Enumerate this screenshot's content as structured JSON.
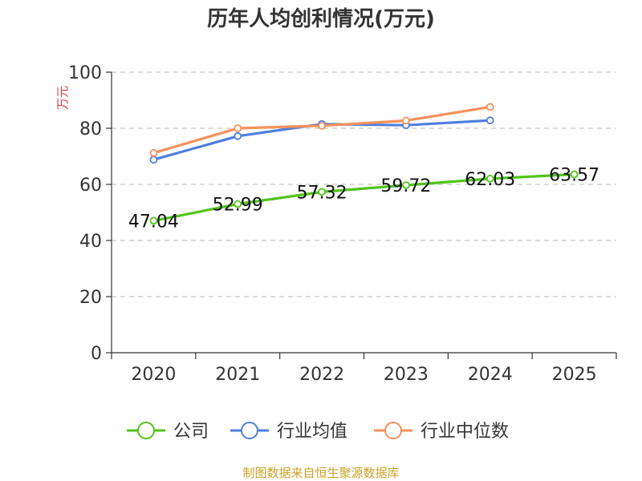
{
  "chart_data": {
    "type": "line",
    "title": "历年人均创利情况(万元)",
    "ylabel": "万元",
    "xlabel": "",
    "categories": [
      "2020",
      "2021",
      "2022",
      "2023",
      "2024",
      "2025"
    ],
    "ylim": [
      0,
      100
    ],
    "yticks": [
      0,
      20,
      40,
      60,
      80,
      100
    ],
    "grid": true,
    "legend_position": "bottom",
    "series": [
      {
        "name": "公司",
        "color": "#52c41a",
        "values": [
          47.04,
          52.99,
          57.32,
          59.72,
          62.03,
          63.57
        ],
        "labels": [
          "47.04",
          "52.99",
          "57.32",
          "59.72",
          "62.03",
          "63.57"
        ]
      },
      {
        "name": "行业均值",
        "color": "#4f7fde",
        "values": [
          68.8,
          77.2,
          81.5,
          81.1,
          82.8,
          null
        ]
      },
      {
        "name": "行业中位数",
        "color": "#f5915a",
        "values": [
          71.2,
          80.0,
          80.9,
          82.7,
          87.6,
          null
        ]
      }
    ]
  },
  "source": "制图数据来自恒生聚源数据库"
}
